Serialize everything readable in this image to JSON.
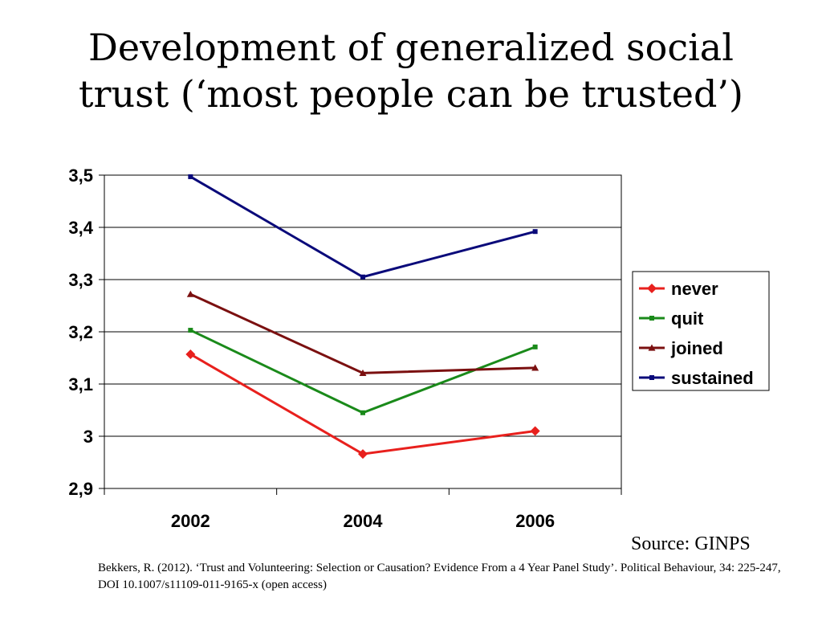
{
  "title_lines": [
    "Development of generalized social",
    "trust (‘most people can be trusted’)"
  ],
  "chart_data": {
    "type": "line",
    "title": "Development of generalized social trust (‘most people can be trusted’)",
    "categories": [
      "2002",
      "2004",
      "2006"
    ],
    "ylim": [
      2.9,
      3.5
    ],
    "yticks": [
      2.9,
      3.0,
      3.1,
      3.2,
      3.3,
      3.4,
      3.5
    ],
    "ytick_labels": [
      "2,9",
      "3",
      "3,1",
      "3,2",
      "3,3",
      "3,4",
      "3,5"
    ],
    "grid": true,
    "legend_position": "right",
    "series": [
      {
        "name": "never",
        "values": [
          3.157,
          2.966,
          3.01
        ],
        "color": "#e8201d",
        "marker": "diamond"
      },
      {
        "name": "quit",
        "values": [
          3.203,
          3.045,
          3.171
        ],
        "color": "#1a8a1a",
        "marker": "square"
      },
      {
        "name": "joined",
        "values": [
          3.272,
          3.121,
          3.131
        ],
        "color": "#7b1010",
        "marker": "triangle"
      },
      {
        "name": "sustained",
        "values": [
          3.497,
          3.305,
          3.392
        ],
        "color": "#0a0a7a",
        "marker": "square"
      }
    ]
  },
  "source": "Source: GINPS",
  "citation": "Bekkers, R. (2012). ‘Trust and Volunteering: Selection or Causation? Evidence From a 4 Year Panel Study’. Political Behaviour, 34: 225-247, DOI 10.1007/s11109-011-9165-x (open access)"
}
